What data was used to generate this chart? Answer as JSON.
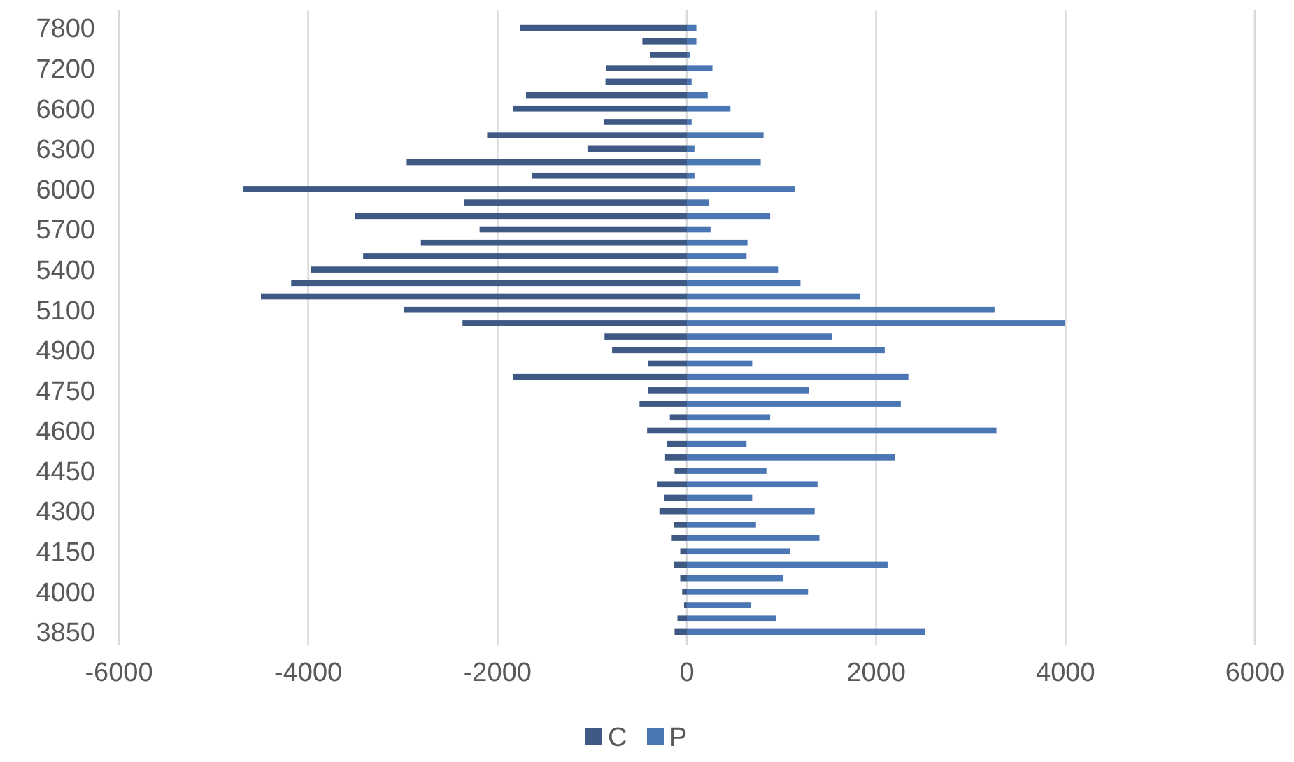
{
  "chart_data": {
    "type": "bar",
    "orientation": "horizontal",
    "categories": [
      "7800",
      null,
      null,
      "7200",
      null,
      null,
      "6600",
      null,
      null,
      "6300",
      null,
      null,
      "6000",
      null,
      null,
      "5700",
      null,
      null,
      "5400",
      null,
      null,
      "5100",
      null,
      null,
      "4900",
      null,
      null,
      "4750",
      null,
      null,
      "4600",
      null,
      null,
      "4450",
      null,
      null,
      "4300",
      null,
      null,
      "4150",
      null,
      null,
      "4000",
      null,
      null,
      "3850"
    ],
    "series": [
      {
        "name": "C",
        "color": "#3e5a84",
        "values": [
          -1760,
          -470,
          -390,
          -850,
          -860,
          -1700,
          -1840,
          -880,
          -2110,
          -1050,
          -2960,
          -1640,
          -4690,
          -2350,
          -3510,
          -2190,
          -2810,
          -3420,
          -3970,
          -4180,
          -4500,
          -2990,
          -2370,
          -870,
          -790,
          -410,
          -1840,
          -410,
          -500,
          -180,
          -420,
          -210,
          -230,
          -130,
          -310,
          -240,
          -290,
          -140,
          -160,
          -70,
          -140,
          -70,
          -50,
          -30,
          -100,
          -130
        ]
      },
      {
        "name": "P",
        "color": "#4a76b4",
        "values": [
          100,
          100,
          30,
          270,
          50,
          220,
          460,
          50,
          810,
          80,
          780,
          80,
          1140,
          230,
          880,
          250,
          640,
          630,
          970,
          1200,
          1830,
          3250,
          3990,
          1530,
          2090,
          690,
          2340,
          1290,
          2260,
          880,
          3270,
          630,
          2200,
          840,
          1380,
          690,
          1350,
          730,
          1400,
          1090,
          2120,
          1020,
          1280,
          680,
          940,
          2520
        ]
      }
    ],
    "xlim": [
      -6000,
      6000
    ],
    "xticks": [
      -6000,
      -4000,
      -2000,
      0,
      2000,
      4000,
      6000
    ],
    "grid": "x",
    "legend": "bottom",
    "stacked": true
  }
}
